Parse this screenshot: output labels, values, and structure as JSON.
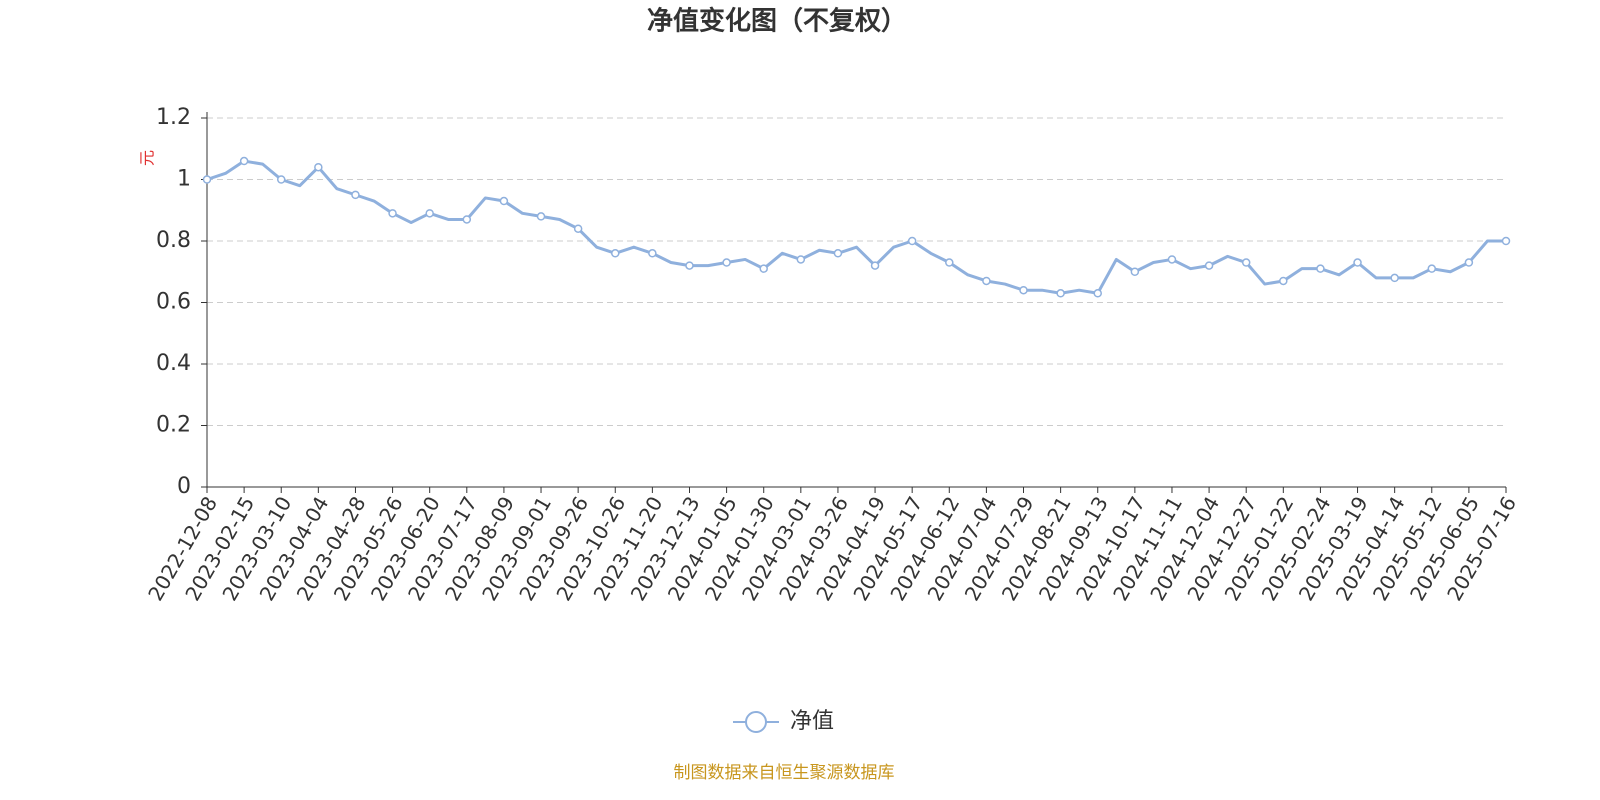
{
  "chart_data": {
    "type": "line",
    "title": "净值变化图（不复权）",
    "y_label": "元",
    "source": "制图数据来自恒生聚源数据库",
    "categories": [
      "2022-12-08",
      null,
      "2023-02-15",
      null,
      "2023-03-10",
      null,
      "2023-04-04",
      null,
      "2023-04-28",
      null,
      "2023-05-26",
      null,
      "2023-06-20",
      null,
      "2023-07-17",
      null,
      "2023-08-09",
      null,
      "2023-09-01",
      null,
      "2023-09-26",
      null,
      "2023-10-26",
      null,
      "2023-11-20",
      null,
      "2023-12-13",
      null,
      "2024-01-05",
      null,
      "2024-01-30",
      null,
      "2024-03-01",
      null,
      "2024-03-26",
      null,
      "2024-04-19",
      null,
      "2024-05-17",
      null,
      "2024-06-12",
      null,
      "2024-07-04",
      null,
      "2024-07-29",
      null,
      "2024-08-21",
      null,
      "2024-09-13",
      null,
      "2024-10-17",
      null,
      "2024-11-11",
      null,
      "2024-12-04",
      null,
      "2024-12-27",
      null,
      "2025-01-22",
      null,
      "2025-02-24",
      null,
      "2025-03-19",
      null,
      "2025-04-14",
      null,
      "2025-05-12",
      null,
      "2025-06-05",
      null,
      "2025-07-16"
    ],
    "series": [
      {
        "name": "净值",
        "color": "#8fb0dd",
        "values": [
          1.0,
          1.02,
          1.06,
          1.05,
          1.0,
          0.98,
          1.04,
          0.97,
          0.95,
          0.93,
          0.89,
          0.86,
          0.89,
          0.87,
          0.87,
          0.94,
          0.93,
          0.89,
          0.88,
          0.87,
          0.84,
          0.78,
          0.76,
          0.78,
          0.76,
          0.73,
          0.72,
          0.72,
          0.73,
          0.74,
          0.71,
          0.76,
          0.74,
          0.77,
          0.76,
          0.78,
          0.72,
          0.78,
          0.8,
          0.76,
          0.73,
          0.69,
          0.67,
          0.66,
          0.64,
          0.64,
          0.63,
          0.64,
          0.63,
          0.74,
          0.7,
          0.73,
          0.74,
          0.71,
          0.72,
          0.75,
          0.73,
          0.66,
          0.67,
          0.71,
          0.71,
          0.69,
          0.73,
          0.68,
          0.68,
          0.68,
          0.71,
          0.7,
          0.73,
          0.8,
          0.8
        ]
      }
    ],
    "ylim": [
      0,
      1.2
    ],
    "yticks": [
      0,
      0.2,
      0.4,
      0.6,
      0.8,
      1,
      1.2
    ],
    "grid": true,
    "legend": "bottom"
  }
}
